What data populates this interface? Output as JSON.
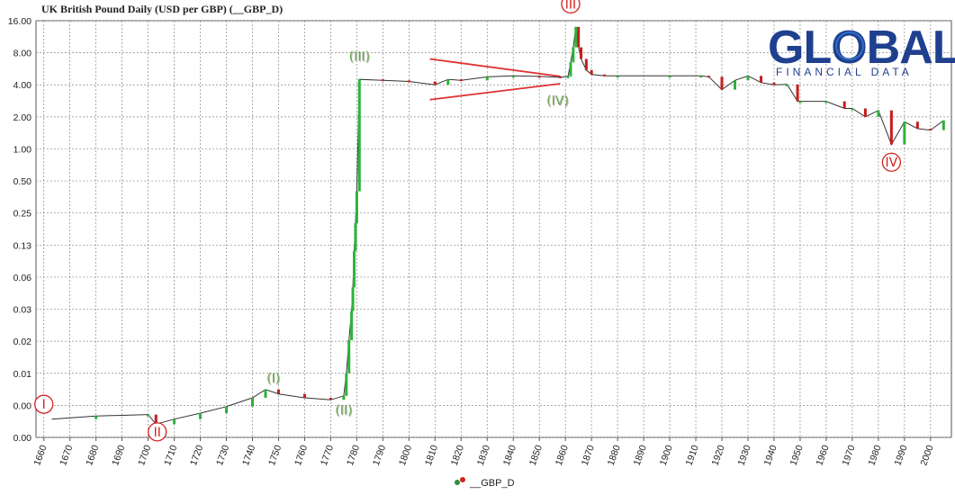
{
  "chart_data": {
    "type": "bar",
    "title": "UK British Pound Daily (USD per GBP) (__GBP_D)",
    "y_scale": "log2",
    "y_tick_labels": [
      "16.00",
      "8.00",
      "4.00",
      "2.00",
      "1.00",
      "0.50",
      "0.25",
      "0.13",
      "0.06",
      "0.03",
      "0.02",
      "0.01",
      "0.00",
      "0.00"
    ],
    "y_tick_values": [
      16,
      8,
      4,
      2,
      1,
      0.5,
      0.25,
      0.125,
      0.0625,
      0.03125,
      0.015625,
      0.0078125,
      0.00390625,
      0.001953125
    ],
    "x_tick_labels": [
      "1660",
      "1670",
      "1680",
      "1690",
      "1700",
      "1710",
      "1720",
      "1730",
      "1740",
      "1750",
      "1760",
      "1770",
      "1780",
      "1790",
      "1800",
      "1810",
      "1820",
      "1830",
      "1840",
      "1850",
      "1860",
      "1870",
      "1880",
      "1890",
      "1900",
      "1910",
      "1920",
      "1930",
      "1940",
      "1950",
      "1960",
      "1970",
      "1980",
      "1990",
      "2000"
    ],
    "xlim": [
      1657,
      2008
    ],
    "grid": true,
    "legend": {
      "position": "bottom-center",
      "entries": [
        "__GBP_D"
      ]
    },
    "series": [
      {
        "name": "__GBP_D",
        "x": [
          1663,
          1680,
          1700,
          1703,
          1710,
          1720,
          1730,
          1740,
          1745,
          1750,
          1760,
          1770,
          1775,
          1776,
          1777,
          1778,
          1778.5,
          1779,
          1779.5,
          1780,
          1781,
          1790,
          1800,
          1810,
          1815,
          1820,
          1830,
          1840,
          1850,
          1858,
          1861,
          1862,
          1863,
          1864,
          1865,
          1866,
          1868,
          1870,
          1875,
          1880,
          1900,
          1912,
          1915,
          1920,
          1925,
          1930,
          1935,
          1940,
          1945,
          1949,
          1950,
          1960,
          1967,
          1970,
          1975,
          1980,
          1985,
          1990,
          1995,
          2000,
          2005
        ],
        "y": [
          0.0029,
          0.0031,
          0.0032,
          0.0026,
          0.0029,
          0.0033,
          0.0038,
          0.0046,
          0.0055,
          0.005,
          0.0046,
          0.0044,
          0.0048,
          0.0078,
          0.016,
          0.03,
          0.05,
          0.11,
          0.2,
          0.4,
          4.5,
          4.4,
          4.3,
          4.0,
          4.5,
          4.4,
          4.75,
          4.85,
          4.8,
          4.7,
          4.8,
          6.5,
          9.0,
          14.0,
          9.0,
          7.0,
          5.5,
          5.0,
          4.86,
          4.86,
          4.86,
          4.86,
          4.76,
          3.6,
          4.4,
          4.85,
          4.2,
          4.0,
          4.03,
          2.8,
          2.8,
          2.8,
          2.4,
          2.4,
          2.0,
          2.3,
          1.1,
          1.8,
          1.55,
          1.5,
          1.85
        ]
      }
    ],
    "annotations": [
      {
        "label": "I",
        "style": "circled",
        "color": "#d42020",
        "x": 1660,
        "y": 0.004
      },
      {
        "label": "II",
        "style": "circled",
        "color": "#d42020",
        "x": 1703.5,
        "y": 0.0022
      },
      {
        "label": "(I)",
        "style": "shadow",
        "color": "#6aa84f",
        "x": 1748,
        "y": 0.0064
      },
      {
        "label": "(II)",
        "style": "shadow",
        "color": "#6aa84f",
        "x": 1775,
        "y": 0.0032
      },
      {
        "label": "(III)",
        "style": "shadow",
        "color": "#6aa84f",
        "x": 1781,
        "y": 6.7
      },
      {
        "label": "(IV)",
        "style": "shadow",
        "color": "#6aa84f",
        "x": 1857,
        "y": 2.6
      },
      {
        "label": "III",
        "style": "circled",
        "color": "#d42020",
        "x": 1862,
        "y": 23
      },
      {
        "label": "IV",
        "style": "circled",
        "color": "#d42020",
        "x": 1985,
        "y": 0.75
      }
    ],
    "trendlines": [
      {
        "color": "#e03030",
        "from": [
          1808,
          7.0
        ],
        "to": [
          1858,
          4.8
        ]
      },
      {
        "color": "#e03030",
        "from": [
          1808,
          2.9
        ],
        "to": [
          1858,
          4.1
        ]
      }
    ]
  },
  "logo": {
    "word": "GLOBAL",
    "tagline": "FINANCIAL DATA"
  }
}
